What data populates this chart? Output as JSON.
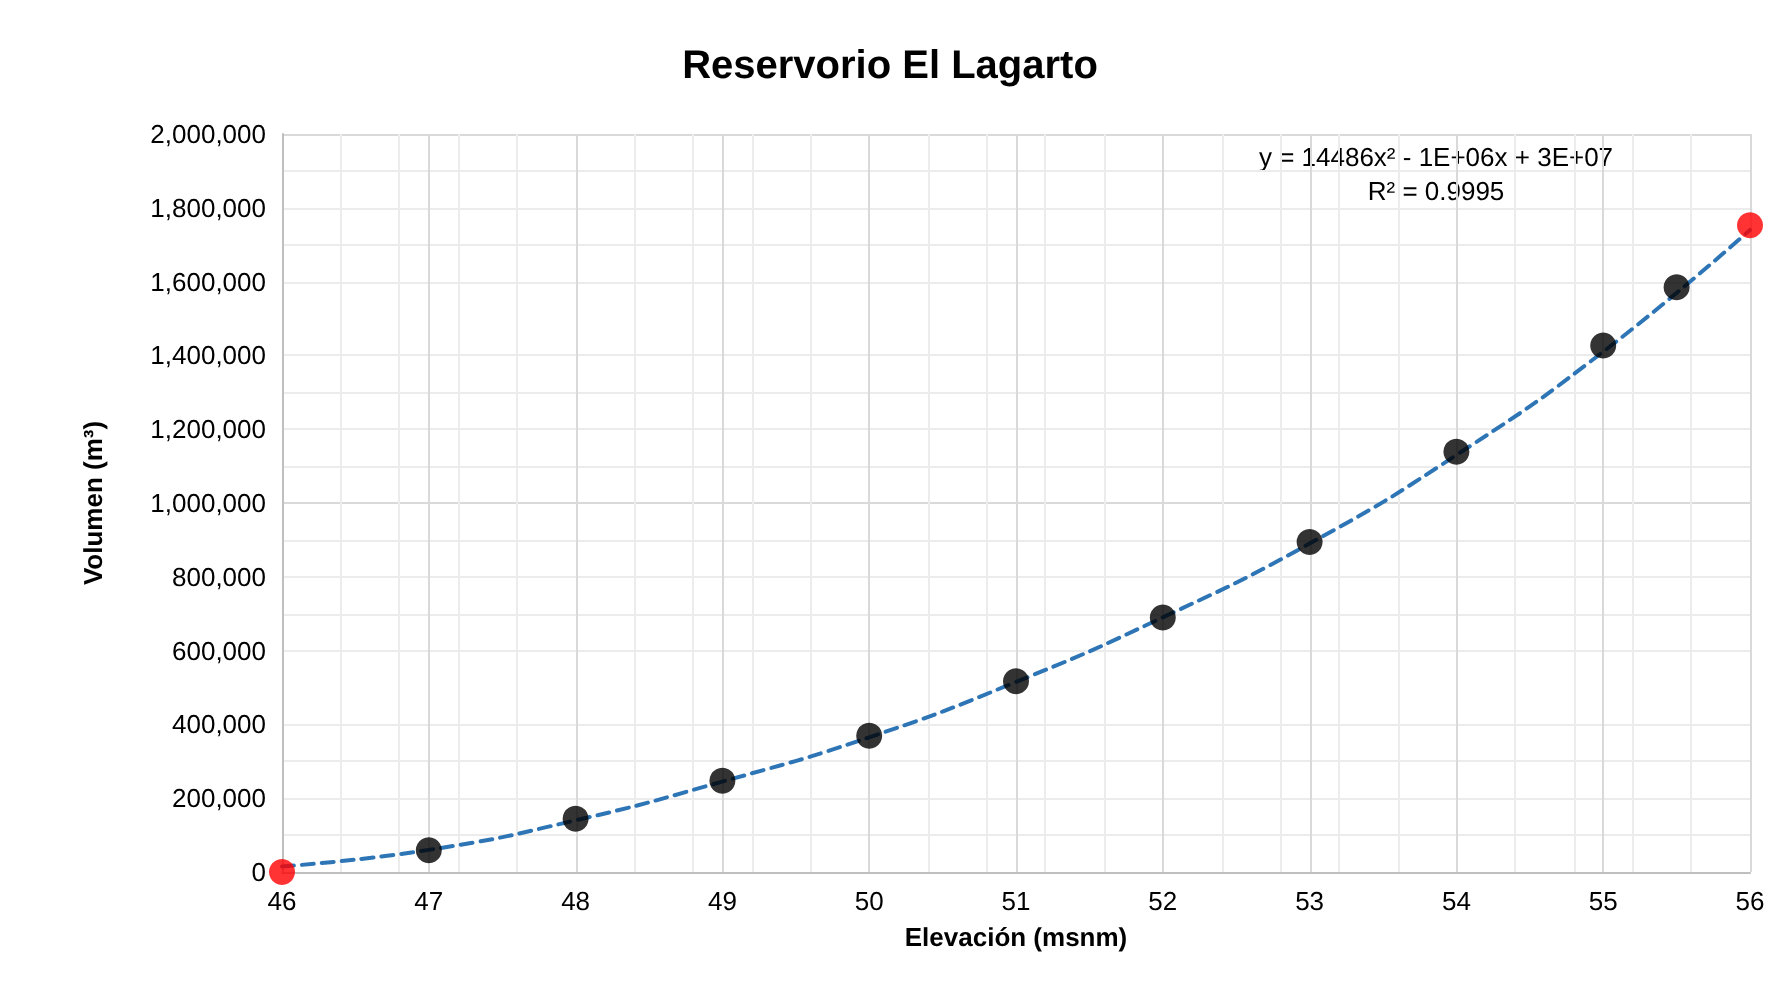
{
  "chart_data": {
    "type": "scatter",
    "title": "Reservorio El Lagarto",
    "xlabel": "Elevación (msnm)",
    "ylabel": "Volumen (m³)",
    "annotations": [
      "y = 14486x² - 1E+06x + 3E+07",
      "R² = 0.9995"
    ],
    "series": [
      {
        "type": "line",
        "color": "#2e75b6",
        "line_style": "dashed",
        "marker": "none",
        "x": [
          46,
          47,
          48,
          49,
          50,
          51,
          52,
          53,
          54,
          55,
          56
        ],
        "values": [
          15000,
          60000,
          140000,
          245000,
          365000,
          515000,
          690000,
          890000,
          1130000,
          1410000,
          1740000
        ]
      },
      {
        "color": "#000000",
        "marker": "circle",
        "x": [
          47,
          48,
          49,
          50,
          51,
          52,
          53,
          54,
          55,
          55.5
        ],
        "values": [
          59000,
          144000,
          247000,
          369000,
          517000,
          690000,
          894000,
          1139000,
          1427000,
          1585000
        ]
      },
      {
        "color": "#ff0000",
        "marker": "circle",
        "x": [
          46,
          56
        ],
        "values": [
          0,
          1753000
        ]
      }
    ],
    "xlim": [
      46,
      56
    ],
    "xticks": [
      46,
      47,
      48,
      49,
      50,
      51,
      52,
      53,
      54,
      55,
      56
    ],
    "ylim": [
      0,
      2000000
    ],
    "yticks": [
      {
        "value": 0,
        "label": "0"
      },
      {
        "value": 200000,
        "label": "200,000"
      },
      {
        "value": 400000,
        "label": "400,000"
      },
      {
        "value": 600000,
        "label": "600,000"
      },
      {
        "value": 800000,
        "label": "800,000"
      },
      {
        "value": 1000000,
        "label": "1,000,000"
      },
      {
        "value": 1200000,
        "label": "1,200,000"
      },
      {
        "value": 1400000,
        "label": "1,400,000"
      },
      {
        "value": 1600000,
        "label": "1,600,000"
      },
      {
        "value": 1800000,
        "label": "1,800,000"
      },
      {
        "value": 2000000,
        "label": "2,000,000"
      }
    ],
    "grid": true
  }
}
